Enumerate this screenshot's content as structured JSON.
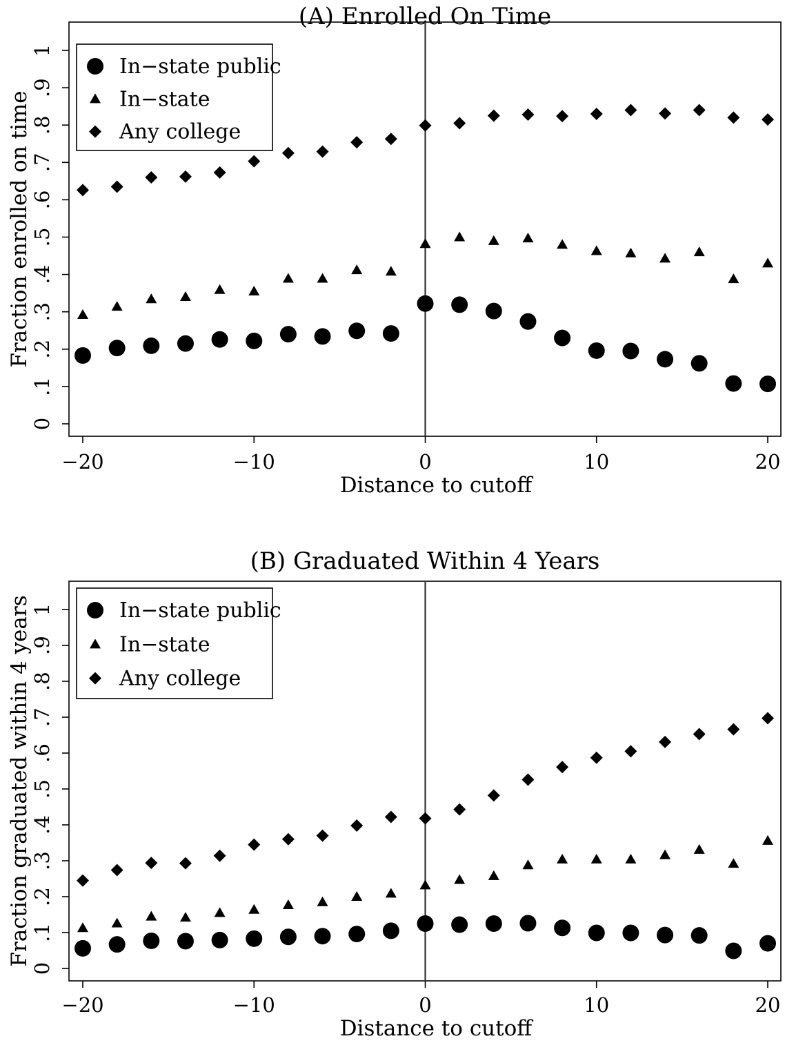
{
  "chart_data": [
    {
      "type": "scatter",
      "title": "(A) Enrolled On Time",
      "xlabel": "Distance to cutoff",
      "ylabel": "Fraction enrolled on time",
      "xlim": [
        -20,
        20
      ],
      "ylim": [
        0,
        1
      ],
      "xticks": [
        -20,
        -10,
        0,
        10,
        20
      ],
      "xtick_labels": [
        "−20",
        "−10",
        "0",
        "10",
        "20"
      ],
      "yticks": [
        0,
        0.1,
        0.2,
        0.3,
        0.4,
        0.5,
        0.6,
        0.7,
        0.8,
        0.9,
        1
      ],
      "ytick_labels": [
        "0",
        ".1",
        ".2",
        ".3",
        ".4",
        ".5",
        ".6",
        ".7",
        ".8",
        ".9",
        "1"
      ],
      "vline_x": 0,
      "grid": false,
      "legend_position": "top-left",
      "x": [
        -20,
        -18,
        -16,
        -14,
        -12,
        -10,
        -8,
        -6,
        -4,
        -2,
        0,
        2,
        4,
        6,
        8,
        10,
        12,
        14,
        16,
        18,
        20
      ],
      "series": [
        {
          "name": "In−state public",
          "marker": "circle",
          "values": [
            0.183,
            0.203,
            0.209,
            0.215,
            0.226,
            0.222,
            0.24,
            0.234,
            0.249,
            0.242,
            0.322,
            0.319,
            0.302,
            0.274,
            0.23,
            0.196,
            0.195,
            0.173,
            0.162,
            0.108,
            0.107
          ]
        },
        {
          "name": "In−state",
          "marker": "triangle",
          "values": [
            0.292,
            0.314,
            0.334,
            0.34,
            0.359,
            0.355,
            0.389,
            0.389,
            0.412,
            0.408,
            0.482,
            0.5,
            0.49,
            0.497,
            0.48,
            0.463,
            0.457,
            0.443,
            0.46,
            0.388,
            0.43
          ]
        },
        {
          "name": "Any college",
          "marker": "diamond",
          "values": [
            0.626,
            0.635,
            0.66,
            0.662,
            0.673,
            0.703,
            0.725,
            0.729,
            0.754,
            0.763,
            0.799,
            0.805,
            0.825,
            0.828,
            0.824,
            0.83,
            0.84,
            0.831,
            0.84,
            0.82,
            0.815
          ]
        }
      ]
    },
    {
      "type": "scatter",
      "title": "(B) Graduated Within 4 Years",
      "xlabel": "Distance to cutoff",
      "ylabel": "Fraction graduated within 4 years",
      "xlim": [
        -20,
        20
      ],
      "ylim": [
        0,
        1
      ],
      "xticks": [
        -20,
        -10,
        0,
        10,
        20
      ],
      "xtick_labels": [
        "−20",
        "−10",
        "0",
        "10",
        "20"
      ],
      "yticks": [
        0,
        0.1,
        0.2,
        0.3,
        0.4,
        0.5,
        0.6,
        0.7,
        0.8,
        0.9,
        1
      ],
      "ytick_labels": [
        "0",
        ".1",
        ".2",
        ".3",
        ".4",
        ".5",
        ".6",
        ".7",
        ".8",
        ".9",
        "1"
      ],
      "vline_x": 0,
      "grid": false,
      "legend_position": "top-left",
      "x": [
        -20,
        -18,
        -16,
        -14,
        -12,
        -10,
        -8,
        -6,
        -4,
        -2,
        0,
        2,
        4,
        6,
        8,
        10,
        12,
        14,
        16,
        18,
        20
      ],
      "series": [
        {
          "name": "In−state public",
          "marker": "circle",
          "values": [
            0.056,
            0.067,
            0.077,
            0.076,
            0.079,
            0.083,
            0.088,
            0.09,
            0.096,
            0.105,
            0.125,
            0.122,
            0.125,
            0.126,
            0.113,
            0.099,
            0.099,
            0.093,
            0.092,
            0.049,
            0.07
          ]
        },
        {
          "name": "In−state",
          "marker": "triangle",
          "values": [
            0.113,
            0.126,
            0.145,
            0.142,
            0.155,
            0.164,
            0.177,
            0.185,
            0.2,
            0.209,
            0.232,
            0.247,
            0.258,
            0.288,
            0.304,
            0.304,
            0.304,
            0.316,
            0.331,
            0.292,
            0.356
          ]
        },
        {
          "name": "Any college",
          "marker": "diamond",
          "values": [
            0.245,
            0.274,
            0.294,
            0.293,
            0.314,
            0.345,
            0.36,
            0.37,
            0.398,
            0.422,
            0.418,
            0.443,
            0.482,
            0.526,
            0.561,
            0.587,
            0.605,
            0.631,
            0.653,
            0.666,
            0.697
          ]
        }
      ]
    }
  ]
}
